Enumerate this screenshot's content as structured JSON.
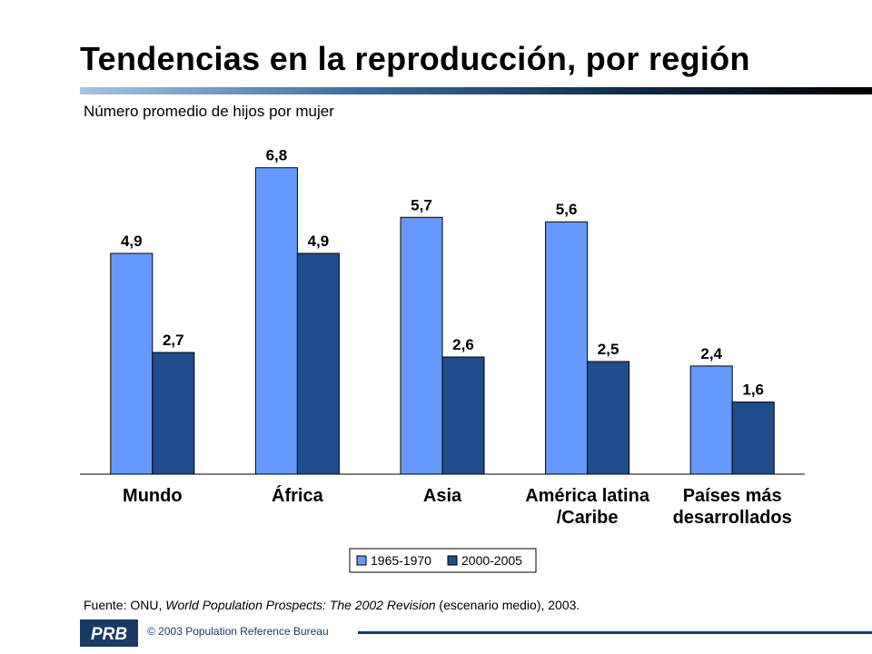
{
  "header": {
    "title": "Tendencias en la reproducción, por región",
    "subtitle": "Número promedio de hijos por mujer"
  },
  "chart_data": {
    "type": "bar",
    "title": "Tendencias en la reproducción, por región",
    "ylabel": "Número promedio de hijos por mujer",
    "xlabel": "",
    "ylim": [
      0,
      7.5
    ],
    "grid": false,
    "legend_position": "bottom-center",
    "categories": [
      "Mundo",
      "África",
      "Asia",
      "América latina /Caribe",
      "Países más desarrollados"
    ],
    "category_lines": [
      [
        "Mundo"
      ],
      [
        "África"
      ],
      [
        "Asia"
      ],
      [
        "América latina",
        "/Caribe"
      ],
      [
        "Países más",
        "desarrollados"
      ]
    ],
    "series": [
      {
        "name": "1965-1970",
        "color": "#6699ff",
        "values": [
          4.9,
          6.8,
          5.7,
          5.6,
          2.4
        ],
        "labels": [
          "4,9",
          "6,8",
          "5,7",
          "5,6",
          "2,4"
        ]
      },
      {
        "name": "2000-2005",
        "color": "#1f4e8c",
        "values": [
          2.7,
          4.9,
          2.6,
          2.5,
          1.6
        ],
        "labels": [
          "2,7",
          "4,9",
          "2,6",
          "2,5",
          "1,6"
        ]
      }
    ]
  },
  "footer": {
    "source_prefix": "Fuente: ONU, ",
    "source_italic": "World Population Prospects: The 2002 Revision",
    "source_suffix": " (escenario medio), 2003.",
    "copyright": "© 2003 Population Reference Bureau",
    "logo_text": "PRB"
  }
}
